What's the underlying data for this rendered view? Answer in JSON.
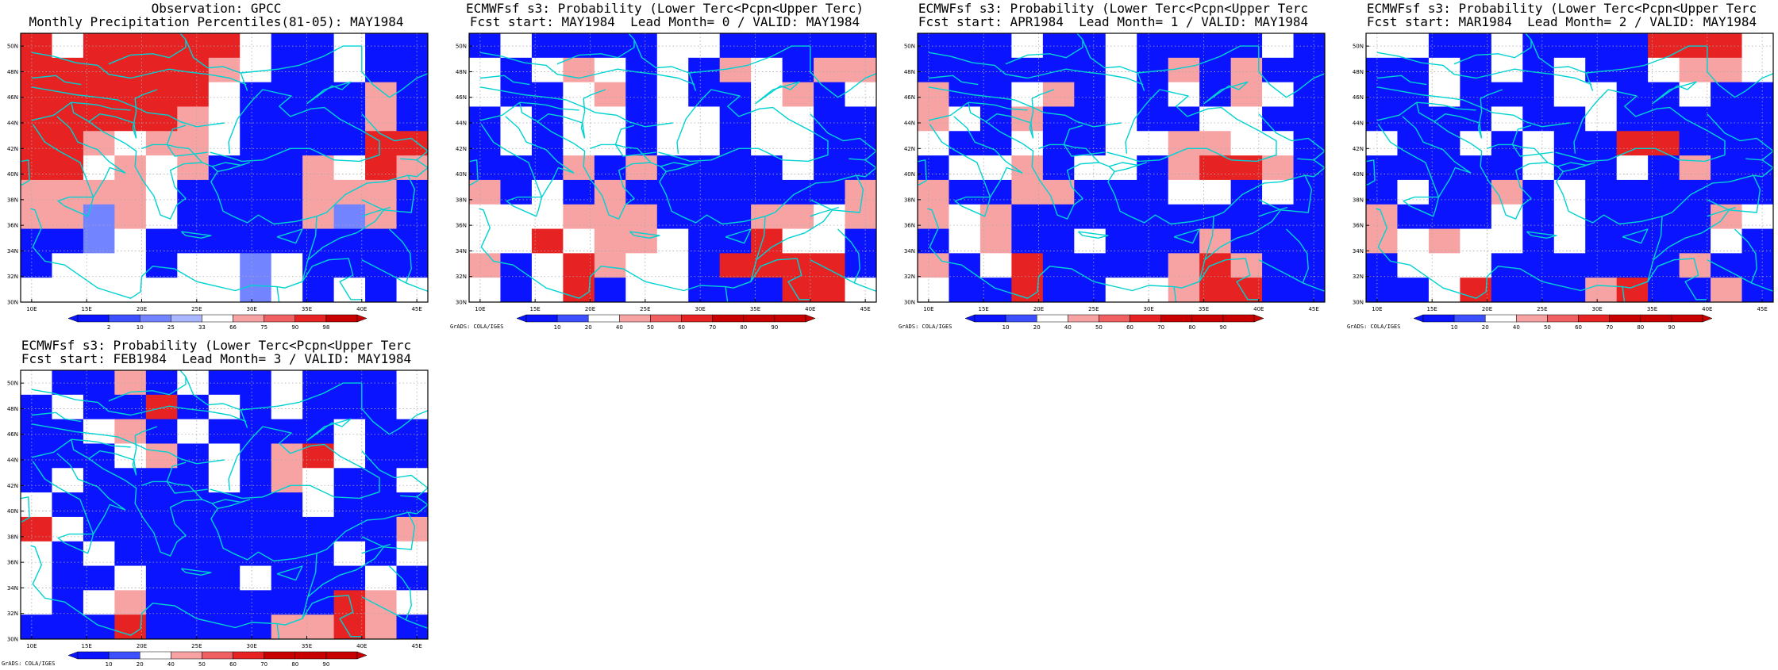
{
  "colors": {
    "dark_blue": "#0a14ff",
    "mid_blue": "#3c50ff",
    "light_blue": "#7284ff",
    "pale_blue": "#aab6ff",
    "white": "#ffffff",
    "pale_red": "#f7a3a3",
    "mid_red": "#f06060",
    "red": "#e62222",
    "dark_red": "#c80000",
    "coast": "#00d2d2",
    "grid": "#aaaaaa"
  },
  "panels": [
    {
      "title1": "Observation: GPCC",
      "title2": "Monthly Precipitation Percentiles(81-05): MAY1984",
      "legend_labels": [
        "2",
        "10",
        "25",
        "33",
        "66",
        "75",
        "90",
        "98"
      ],
      "credit": "",
      "chart_data": {
        "type": "heatmap",
        "x_ticks": [
          "10E",
          "15E",
          "20E",
          "25E",
          "30E",
          "35E",
          "40E",
          "45E"
        ],
        "y_ticks": [
          "30N",
          "32N",
          "34N",
          "36N",
          "38N",
          "40N",
          "42N",
          "44N",
          "46N",
          "48N",
          "50N"
        ],
        "grid": [
          "RWRRRRRWBBWBB",
          "RRRRRRPWBBWBB",
          "RRRRRRWBBBBPB",
          "RRRRRPWBBBBPB",
          "RRPWPPWBBBBRR",
          "RRWPWPBBBPWRP",
          "PPPPWBBBBPPPB",
          "PPLPWBBBBPLPB",
          "BBLWBBBBBBBBB",
          "BWWWBWWLWBBBB",
          "WWWWWWWLWBWBW"
        ]
      }
    },
    {
      "title1": "ECMWFsf s3: Probability (Lower Terc<Pcpn<Upper Terc)",
      "title2": "Fcst start: MAY1984  Lead Month= 0 / VALID: MAY1984",
      "legend_labels": [
        "10",
        "20",
        "40",
        "50",
        "60",
        "70",
        "80",
        "90"
      ],
      "credit": "GrADS: COLA/IGES",
      "chart_data": {
        "type": "heatmap",
        "x_ticks": [
          "10E",
          "15E",
          "20E",
          "25E",
          "30E",
          "35E",
          "40E",
          "45E"
        ],
        "y_ticks": [
          "30N",
          "32N",
          "34N",
          "36N",
          "38N",
          "40N",
          "42N",
          "44N",
          "46N",
          "48N",
          "50N"
        ],
        "grid": [
          "BWBBBBWWBBBBB",
          "WBWPWBWBPWBPP",
          "WBBWPBWBBWPBW",
          "BWBWWBWWBWWBB",
          "BWBWWBWWBWWBB",
          "BBBPBPBBBBWBB",
          "PBWBPBBBBBBBP",
          "WWWPPPBBBPPWP",
          "WWRWPPWBBRWWB",
          "PBWRPWWBRRRRB",
          "WBWRBWWBBBRRW"
        ]
      }
    },
    {
      "title1": "ECMWFsf s3: Probability (Lower Terc<Pcpn<Upper Terc",
      "title2": "Fcst start: APR1984  Lead Month= 1 / VALID: MAY1984",
      "legend_labels": [
        "10",
        "20",
        "40",
        "50",
        "60",
        "70",
        "80",
        "90"
      ],
      "credit": "GrADS: COLA/IGES",
      "chart_data": {
        "type": "heatmap",
        "x_ticks": [
          "10E",
          "15E",
          "20E",
          "25E",
          "30E",
          "35E",
          "40E",
          "45E"
        ],
        "y_ticks": [
          "30N",
          "32N",
          "34N",
          "36N",
          "38N",
          "40N",
          "42N",
          "44N",
          "46N",
          "48N",
          "50N"
        ],
        "grid": [
          "BBBWBBWBBBBWB",
          "BBBBBBWBPBPBB",
          "PBBWPBWBWBPWB",
          "PWBPBBWBBWWBB",
          "WBBWBBWWPPWWB",
          "BWWPBWWBPRRPB",
          "PBBPPBBBWWBWB",
          "PWPBBBBBBBBBB",
          "BWPBBWBBBPBBB",
          "PBWRBBBBPRPBB",
          "WBBRBBWWPRRBB"
        ]
      }
    },
    {
      "title1": "ECMWFsf s3: Probability (Lower Terc<Pcpn<Upper Terc",
      "title2": "Fcst start: MAR1984  Lead Month= 2 / VALID: MAY1984",
      "legend_labels": [
        "10",
        "20",
        "40",
        "50",
        "60",
        "70",
        "80",
        "90"
      ],
      "credit": "GrADS: COLA/IGES",
      "chart_data": {
        "type": "heatmap",
        "x_ticks": [
          "10E",
          "15E",
          "20E",
          "25E",
          "30E",
          "35E",
          "40E",
          "45E"
        ],
        "y_ticks": [
          "30N",
          "32N",
          "34N",
          "36N",
          "38N",
          "40N",
          "42N",
          "44N",
          "46N",
          "48N",
          "50N"
        ],
        "grid": [
          "WWBBWBBBBRRRW",
          "BBWBWBWBBWPPW",
          "BBWBBBWWBBWBB",
          "BBBBWBBWBBBBB",
          "WBBWBWBBRRBBB",
          "BBBBBWBBWBPBB",
          "BWBBPBWBBBBBB",
          "PBBBWBWBBBBPW",
          "PWPWWBWBBBBWB",
          "BWWWBBBBBBPBB",
          "BBWRBBBPRBBPB"
        ]
      }
    },
    {
      "title1": "ECMWFsf s3: Probability (Lower Terc<Pcpn<Upper Terc",
      "title2": "Fcst start: FEB1984  Lead Month= 3 / VALID: MAY1984",
      "legend_labels": [
        "10",
        "20",
        "40",
        "50",
        "60",
        "70",
        "80",
        "90"
      ],
      "credit": "GrADS: COLA/IGES",
      "chart_data": {
        "type": "heatmap",
        "x_ticks": [
          "10E",
          "15E",
          "20E",
          "25E",
          "30E",
          "35E",
          "40E",
          "45E"
        ],
        "y_ticks": [
          "30N",
          "32N",
          "34N",
          "36N",
          "38N",
          "40N",
          "42N",
          "44N",
          "46N",
          "48N",
          "50N"
        ],
        "grid": [
          "WBBPBWBBWBBBW",
          "BWBBRBWBWBBBW",
          "BBWPBWBBBBWBB",
          "BBBWPBWBPRWBB",
          "BWBBBBWBPWBBW",
          "WBBBBBBBBWBBB",
          "RWBBBBBBBBBBP",
          "WBWBBBBBBBWBW",
          "WBBWBBBWBBBWB",
          "WBWPBBBBBBRPW",
          "BBBRBBBBPPRPB"
        ]
      }
    }
  ]
}
